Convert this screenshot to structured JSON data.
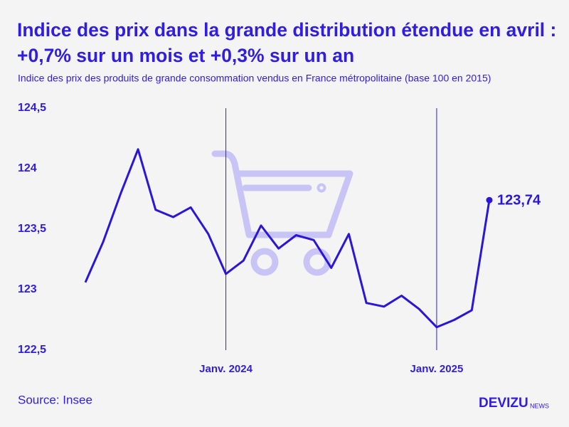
{
  "chart_data": {
    "type": "line",
    "title": "Indice des prix dans la grande distribution étendue en avril : +0,7% sur un mois et +0,3% sur un an",
    "subtitle": "Indice des prix des produits de grande consommation vendus en France métropolitaine (base 100 en 2015)",
    "source": "Source: Insee",
    "brand": "DEVIZU",
    "brand_suffix": "NEWS",
    "categories": [
      null,
      null,
      null,
      null,
      null,
      null,
      null,
      null,
      "Janv. 2024",
      null,
      null,
      null,
      null,
      null,
      null,
      null,
      null,
      null,
      null,
      null,
      "Janv. 2025",
      null,
      null,
      null
    ],
    "series": [
      {
        "name": "Indice",
        "color": "#2a16d8",
        "values": [
          123.06,
          123.39,
          123.79,
          124.16,
          123.66,
          123.6,
          123.68,
          123.46,
          123.13,
          123.24,
          123.53,
          123.34,
          123.45,
          123.41,
          123.18,
          123.46,
          122.89,
          122.86,
          122.95,
          122.84,
          122.69,
          122.75,
          122.83,
          123.74
        ],
        "value_labels": [
          null,
          null,
          null,
          null,
          null,
          null,
          null,
          null,
          null,
          null,
          null,
          null,
          null,
          null,
          null,
          null,
          null,
          null,
          null,
          null,
          null,
          null,
          null,
          "123,74"
        ]
      }
    ],
    "ylim": [
      122.5,
      124.5
    ],
    "yticks": [
      {
        "value": 124.5,
        "label": "124,5"
      },
      124,
      {
        "value": 123.5,
        "label": "123,5"
      },
      123,
      {
        "value": 122.5,
        "label": "122,5"
      }
    ]
  }
}
